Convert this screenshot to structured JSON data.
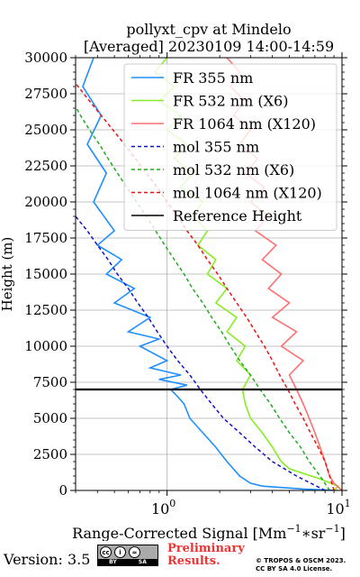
{
  "chart_data": {
    "type": "line",
    "title": "pollyxt_cpv at Mindelo",
    "subtitle": "[Averaged] 20230109 14:00-14:59",
    "xlabel": "Range-Corrected Signal [Mm",
    "xlabel_exp1": "−1",
    "xlabel_mid": "∗sr",
    "xlabel_exp2": "−1",
    "xlabel_end": "]",
    "ylabel": "Height (m)",
    "xscale": "log",
    "xlim": [
      0.3,
      10
    ],
    "ylim": [
      0,
      30000
    ],
    "xticks": [
      {
        "value": 1,
        "base": "10",
        "exp": "0"
      },
      {
        "value": 10,
        "base": "10",
        "exp": "1"
      }
    ],
    "yticks": [
      0,
      2500,
      5000,
      7500,
      10000,
      12500,
      15000,
      17500,
      20000,
      22500,
      25000,
      27500,
      30000
    ],
    "grid": true,
    "legend_position": "top-right",
    "series": [
      {
        "name": "FR 355 nm",
        "color": "#1f8fff",
        "style": "solid",
        "points": [
          [
            9.5,
            0
          ],
          [
            6.0,
            100
          ],
          [
            3.5,
            300
          ],
          [
            3.0,
            500
          ],
          [
            2.6,
            1000
          ],
          [
            2.2,
            2000
          ],
          [
            1.9,
            3000
          ],
          [
            1.6,
            4000
          ],
          [
            1.35,
            5000
          ],
          [
            1.25,
            6000
          ],
          [
            1.15,
            6500
          ],
          [
            1.05,
            7000
          ],
          [
            1.3,
            7300
          ],
          [
            0.9,
            7700
          ],
          [
            1.2,
            8000
          ],
          [
            0.8,
            8500
          ],
          [
            1.0,
            9000
          ],
          [
            0.7,
            10000
          ],
          [
            0.9,
            10500
          ],
          [
            0.6,
            11000
          ],
          [
            0.8,
            12000
          ],
          [
            0.5,
            13000
          ],
          [
            0.65,
            14000
          ],
          [
            0.45,
            15000
          ],
          [
            0.55,
            16000
          ],
          [
            0.4,
            17000
          ],
          [
            0.5,
            18000
          ],
          [
            0.38,
            20000
          ],
          [
            0.45,
            22000
          ],
          [
            0.35,
            24000
          ],
          [
            0.42,
            26000
          ],
          [
            0.33,
            28000
          ],
          [
            0.38,
            30000
          ]
        ]
      },
      {
        "name": "FR 532 nm (X6)",
        "color": "#88ee22",
        "style": "solid",
        "points": [
          [
            9.0,
            0
          ],
          [
            9.5,
            300
          ],
          [
            7.5,
            800
          ],
          [
            5.0,
            1500
          ],
          [
            4.5,
            2000
          ],
          [
            4.0,
            3000
          ],
          [
            3.5,
            4000
          ],
          [
            3.0,
            5000
          ],
          [
            2.8,
            6000
          ],
          [
            2.7,
            7000
          ],
          [
            3.0,
            8000
          ],
          [
            2.5,
            9000
          ],
          [
            2.8,
            10000
          ],
          [
            2.2,
            11000
          ],
          [
            2.5,
            12000
          ],
          [
            1.9,
            13000
          ],
          [
            2.2,
            14000
          ],
          [
            1.7,
            15000
          ],
          [
            1.9,
            16000
          ],
          [
            1.5,
            17000
          ],
          [
            1.7,
            18000
          ],
          [
            1.4,
            19000
          ],
          [
            1.6,
            20000
          ],
          [
            1.2,
            21000
          ],
          [
            1.4,
            22000
          ],
          [
            1.1,
            23000
          ],
          [
            1.3,
            24000
          ],
          [
            1.0,
            25000
          ],
          [
            1.2,
            26000
          ],
          [
            0.9,
            27000
          ],
          [
            1.1,
            28000
          ],
          [
            0.85,
            29000
          ],
          [
            1.0,
            30000
          ]
        ]
      },
      {
        "name": "FR 1064 nm (X120)",
        "color": "#ff6e6e",
        "style": "solid",
        "points": [
          [
            10.0,
            0
          ],
          [
            9.0,
            500
          ],
          [
            8.5,
            1000
          ],
          [
            8.0,
            2000
          ],
          [
            7.5,
            3000
          ],
          [
            7.0,
            4000
          ],
          [
            6.5,
            5000
          ],
          [
            6.0,
            6000
          ],
          [
            5.5,
            7000
          ],
          [
            5.0,
            8000
          ],
          [
            6.0,
            9000
          ],
          [
            4.5,
            10000
          ],
          [
            5.5,
            11000
          ],
          [
            4.0,
            12000
          ],
          [
            5.0,
            13000
          ],
          [
            3.8,
            14000
          ],
          [
            4.5,
            15000
          ],
          [
            3.5,
            16000
          ],
          [
            4.2,
            17000
          ],
          [
            3.2,
            18000
          ],
          [
            3.8,
            19000
          ],
          [
            3.0,
            20000
          ],
          [
            3.6,
            21000
          ],
          [
            2.8,
            22000
          ],
          [
            3.3,
            23000
          ],
          [
            2.6,
            24000
          ],
          [
            3.0,
            25000
          ],
          [
            2.4,
            26000
          ],
          [
            2.8,
            27000
          ],
          [
            2.3,
            28000
          ],
          [
            2.6,
            29000
          ],
          [
            2.2,
            30000
          ]
        ]
      },
      {
        "name": "mol 355 nm",
        "color": "#1111cc",
        "style": "dashed",
        "points": [
          [
            8.0,
            0
          ],
          [
            5.5,
            1000
          ],
          [
            4.0,
            2000
          ],
          [
            3.2,
            3000
          ],
          [
            2.6,
            4000
          ],
          [
            2.1,
            5000
          ],
          [
            1.8,
            6000
          ],
          [
            1.55,
            7000
          ],
          [
            1.35,
            8000
          ],
          [
            1.15,
            9000
          ],
          [
            1.0,
            10000
          ],
          [
            0.88,
            11000
          ],
          [
            0.78,
            12000
          ],
          [
            0.68,
            13000
          ],
          [
            0.6,
            14000
          ],
          [
            0.52,
            15000
          ],
          [
            0.46,
            16000
          ],
          [
            0.4,
            17000
          ],
          [
            0.35,
            18000
          ],
          [
            0.3,
            19000
          ]
        ]
      },
      {
        "name": "mol 532 nm (X6)",
        "color": "#22aa22",
        "style": "dashed",
        "points": [
          [
            8.5,
            0
          ],
          [
            7.5,
            1000
          ],
          [
            6.5,
            2000
          ],
          [
            5.8,
            3000
          ],
          [
            5.0,
            4000
          ],
          [
            4.4,
            5000
          ],
          [
            3.9,
            6000
          ],
          [
            3.4,
            7000
          ],
          [
            3.0,
            8000
          ],
          [
            2.6,
            9000
          ],
          [
            2.3,
            10000
          ],
          [
            2.05,
            11000
          ],
          [
            1.8,
            12000
          ],
          [
            1.6,
            13000
          ],
          [
            1.4,
            14000
          ],
          [
            1.25,
            15000
          ],
          [
            1.1,
            16000
          ],
          [
            0.97,
            17000
          ],
          [
            0.86,
            18000
          ],
          [
            0.76,
            19000
          ],
          [
            0.67,
            20000
          ],
          [
            0.59,
            21000
          ],
          [
            0.52,
            22000
          ],
          [
            0.46,
            23000
          ],
          [
            0.41,
            24000
          ],
          [
            0.36,
            25000
          ],
          [
            0.32,
            26000
          ],
          [
            0.3,
            26600
          ]
        ]
      },
      {
        "name": "mol 1064 nm (X120)",
        "color": "#ee1111",
        "style": "dashed",
        "points": [
          [
            9.0,
            0
          ],
          [
            8.5,
            1000
          ],
          [
            8.0,
            2000
          ],
          [
            7.3,
            3000
          ],
          [
            6.6,
            4000
          ],
          [
            6.0,
            5000
          ],
          [
            5.4,
            6000
          ],
          [
            4.9,
            7000
          ],
          [
            4.4,
            8000
          ],
          [
            4.0,
            9000
          ],
          [
            3.6,
            10000
          ],
          [
            3.2,
            11000
          ],
          [
            2.85,
            12000
          ],
          [
            2.5,
            13000
          ],
          [
            2.2,
            14000
          ],
          [
            1.95,
            15000
          ],
          [
            1.7,
            16000
          ],
          [
            1.5,
            17000
          ],
          [
            1.3,
            18000
          ],
          [
            1.15,
            19000
          ],
          [
            1.0,
            20000
          ],
          [
            0.88,
            21000
          ],
          [
            0.76,
            22000
          ],
          [
            0.66,
            23000
          ],
          [
            0.57,
            24000
          ],
          [
            0.49,
            25000
          ],
          [
            0.42,
            26000
          ],
          [
            0.36,
            27000
          ],
          [
            0.31,
            28000
          ],
          [
            0.3,
            28200
          ]
        ]
      },
      {
        "name": "Reference Height",
        "color": "#000000",
        "style": "solid",
        "points": [
          [
            0.3,
            7000
          ],
          [
            10,
            7000
          ]
        ]
      }
    ]
  },
  "footer": {
    "version": "Version: 3.5",
    "cc_labels": [
      "cc",
      "i",
      "≈"
    ],
    "cc_by": "BY",
    "cc_sa": "SA",
    "preliminary_1": "Preliminary",
    "preliminary_2": "Results.",
    "copyright_1": "© TROPOS & OSCM 2023.",
    "copyright_2": "CC BY SA 4.0 License."
  }
}
